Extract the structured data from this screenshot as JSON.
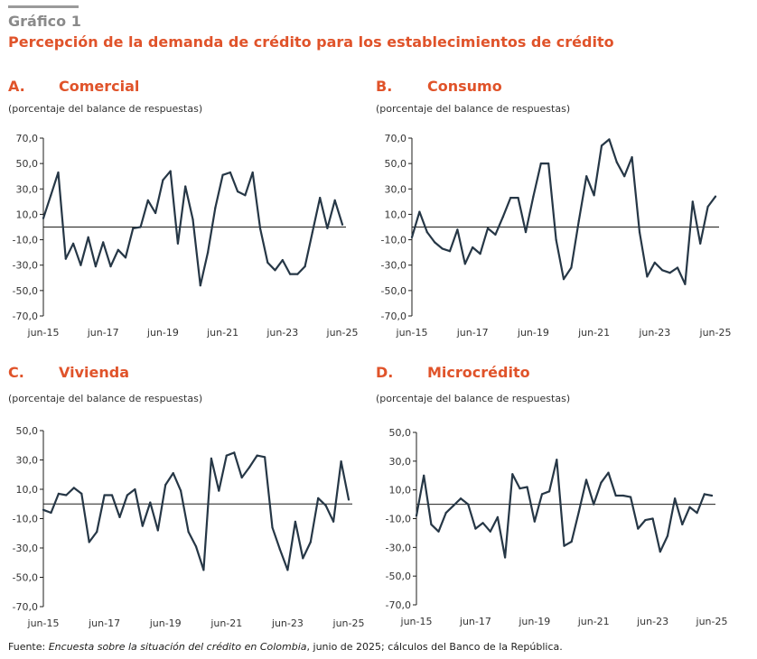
{
  "figure": {
    "label": "Gráfico 1",
    "title": "Percepción de la demanda de crédito para los establecimientos de crédito"
  },
  "source": {
    "prefix": "Fuente: ",
    "italic": "Encuesta sobre la situación del crédito en Colombia",
    "suffix": ", junio de 2025; cálculos del Banco de la República."
  },
  "colors": {
    "line": "#263746",
    "accent": "#e0532a",
    "axis": "#1d1d1b"
  },
  "panels": [
    {
      "letter": "A.",
      "title": "Comercial",
      "subtitle": "(porcentaje del balance de respuestas)"
    },
    {
      "letter": "B.",
      "title": "Consumo",
      "subtitle": "(porcentaje del balance de respuestas)"
    },
    {
      "letter": "C.",
      "title": "Vivienda",
      "subtitle": "(porcentaje del balance de respuestas)"
    },
    {
      "letter": "D.",
      "title": "Microcrédito",
      "subtitle": "(porcentaje del balance de respuestas)"
    }
  ],
  "chart_data": [
    {
      "type": "line",
      "title": "Comercial",
      "ylabel": "porcentaje del balance de respuestas",
      "ylim": [
        -70,
        70
      ],
      "yticks": [
        "70,0",
        "50,0",
        "30,0",
        "10,0",
        "-10,0",
        "-30,0",
        "-50,0",
        "-70,0"
      ],
      "xticks": [
        "jun-15",
        "jun-17",
        "jun-19",
        "jun-21",
        "jun-23",
        "jun-25"
      ],
      "values": [
        7,
        25,
        43,
        -25,
        -13,
        -30,
        -8,
        -31,
        -12,
        -31,
        -18,
        -24,
        -1,
        0,
        21,
        11,
        37,
        44,
        -13,
        32,
        6,
        -46,
        -20,
        15,
        41,
        43,
        28,
        25,
        43,
        -1,
        -28,
        -34,
        -26,
        -37,
        -37,
        -31,
        -4,
        23,
        -1,
        21,
        2
      ]
    },
    {
      "type": "line",
      "title": "Consumo",
      "ylabel": "porcentaje del balance de respuestas",
      "ylim": [
        -70,
        70
      ],
      "yticks": [
        "70,0",
        "50,0",
        "30,0",
        "10,0",
        "-10,0",
        "-30,0",
        "-50,0",
        "-70,0"
      ],
      "xticks": [
        "jun-15",
        "jun-17",
        "jun-19",
        "jun-21",
        "jun-23",
        "jun-25"
      ],
      "values": [
        -8,
        12,
        -4,
        -12,
        -17,
        -19,
        -2,
        -29,
        -16,
        -21,
        -1,
        -6,
        8,
        23,
        23,
        -4,
        24,
        50,
        50,
        -10,
        -41,
        -32,
        5,
        40,
        25,
        64,
        69,
        51,
        40,
        55,
        -4,
        -39,
        -28,
        -34,
        -36,
        -32,
        -45,
        20,
        -13,
        16,
        24
      ]
    },
    {
      "type": "line",
      "title": "Vivienda",
      "ylabel": "porcentaje del balance de respuestas",
      "ylim": [
        -70,
        50
      ],
      "yticks": [
        "50,0",
        "30,0",
        "10,0",
        "-10,0",
        "-30,0",
        "-50,0",
        "-70,0"
      ],
      "xticks": [
        "jun-15",
        "jun-17",
        "jun-19",
        "jun-21",
        "jun-23",
        "jun-25"
      ],
      "values": [
        -4,
        -6,
        7,
        6,
        11,
        7,
        -26,
        -19,
        6,
        6,
        -9,
        6,
        10,
        -15,
        1,
        -18,
        13,
        21,
        9,
        -19,
        -29,
        -45,
        31,
        9,
        33,
        35,
        18,
        25,
        33,
        32,
        -16,
        -31,
        -45,
        -12,
        -37,
        -26,
        4,
        -1,
        -12,
        29,
        3
      ]
    },
    {
      "type": "line",
      "title": "Microcrédito",
      "ylabel": "porcentaje del balance de respuestas",
      "ylim": [
        -70,
        50
      ],
      "yticks": [
        "50,0",
        "30,0",
        "10,0",
        "-10,0",
        "-30,0",
        "-50,0",
        "-70,0"
      ],
      "xticks": [
        "jun-15",
        "jun-17",
        "jun-19",
        "jun-21",
        "jun-23",
        "jun-25"
      ],
      "values": [
        -8,
        20,
        -14,
        -19,
        -6,
        -1,
        4,
        0,
        -17,
        -13,
        -19,
        -9,
        -37,
        21,
        11,
        12,
        -12,
        7,
        9,
        31,
        -29,
        -26,
        -5,
        17,
        0,
        15,
        22,
        6,
        6,
        5,
        -17,
        -11,
        -10,
        -33,
        -22,
        4,
        -14,
        -2,
        -6,
        7,
        6
      ]
    }
  ]
}
